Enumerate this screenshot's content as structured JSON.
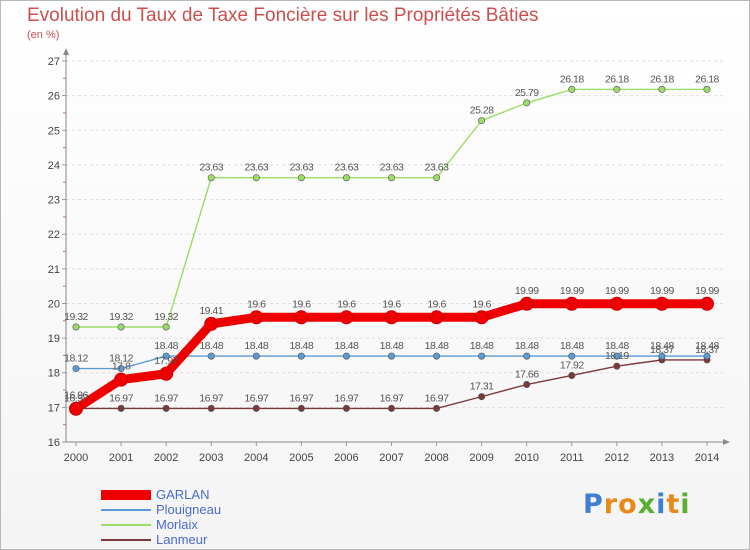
{
  "title": "Evolution du Taux de Taxe Foncière sur les Propriétés Bâties",
  "subtitle": "(en %)",
  "logo": {
    "text": "Proxiti",
    "colors": [
      "#3f7fd0",
      "#e88a1a",
      "#58b030"
    ]
  },
  "chart_data": {
    "type": "line",
    "x": [
      "2000",
      "2001",
      "2002",
      "2003",
      "2004",
      "2005",
      "2006",
      "2007",
      "2008",
      "2009",
      "2010",
      "2011",
      "2012",
      "2013",
      "2014"
    ],
    "ylim": [
      16,
      27
    ],
    "yticks": [
      "16",
      "17",
      "18",
      "19",
      "20",
      "21",
      "22",
      "23",
      "24",
      "25",
      "26",
      "27"
    ],
    "series": [
      {
        "name": "GARLAN",
        "color": "#ee0000",
        "values": [
          16.96,
          17.8,
          17.97,
          19.41,
          19.6,
          19.6,
          19.6,
          19.6,
          19.6,
          19.6,
          19.99,
          19.99,
          19.99,
          19.99,
          19.99
        ],
        "labels": [
          "16.96",
          "17.8",
          "17.97",
          "19.41",
          "19.6",
          "19.6",
          "19.6",
          "19.6",
          "19.6",
          "19.6",
          "19.99",
          "19.99",
          "19.99",
          "19.99",
          "19.99"
        ]
      },
      {
        "name": "Plouigneau",
        "color": "#5b9bd5",
        "values": [
          18.12,
          18.12,
          18.48,
          18.48,
          18.48,
          18.48,
          18.48,
          18.48,
          18.48,
          18.48,
          18.48,
          18.48,
          18.48,
          18.48,
          18.48
        ],
        "labels": [
          "18.12",
          "18.12",
          "18.48",
          "18.48",
          "18.48",
          "18.48",
          "18.48",
          "18.48",
          "18.48",
          "18.48",
          "18.48",
          "18.48",
          "18.48",
          "18.48",
          "18.48"
        ]
      },
      {
        "name": "Morlaix",
        "color": "#99dd66",
        "values": [
          19.32,
          19.32,
          19.32,
          23.63,
          23.63,
          23.63,
          23.63,
          23.63,
          23.63,
          25.28,
          25.79,
          26.18,
          26.18,
          26.18,
          26.18
        ],
        "labels": [
          "19.32",
          "19.32",
          "19.32",
          "23.63",
          "23.63",
          "23.63",
          "23.63",
          "23.63",
          "23.63",
          "25.28",
          "25.79",
          "26.18",
          "26.18",
          "26.18",
          "26.18"
        ]
      },
      {
        "name": "Lanmeur",
        "color": "#7a3a3a",
        "values": [
          16.97,
          16.97,
          16.97,
          16.97,
          16.97,
          16.97,
          16.97,
          16.97,
          16.97,
          17.31,
          17.66,
          17.92,
          18.19,
          18.37,
          18.37
        ],
        "labels": [
          "16.97",
          "16.97",
          "16.97",
          "16.97",
          "16.97",
          "16.97",
          "16.97",
          "16.97",
          "16.97",
          "17.31",
          "17.66",
          "17.92",
          "18.19",
          "18.37",
          "18.37"
        ]
      }
    ]
  }
}
